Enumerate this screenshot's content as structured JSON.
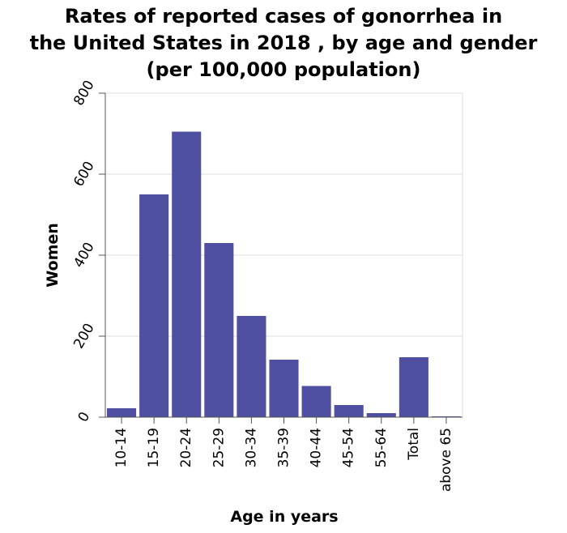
{
  "title_lines": [
    "Rates of reported cases of gonorrhea in",
    "the United States in 2018 , by age and gender",
    "(per 100,000 population)"
  ],
  "colors": {
    "bar": "#5050a2",
    "grid": "#dddddd",
    "axis": "#555555"
  },
  "chart_data": {
    "type": "bar",
    "title": "Rates of reported cases of gonorrhea in the United States in 2018 , by age and gender (per 100,000 population)",
    "xlabel": "Age in years",
    "ylabel": "Women",
    "categories": [
      "10-14",
      "15-19",
      "20-24",
      "25-29",
      "30-34",
      "35-39",
      "40-44",
      "45-54",
      "55-64",
      "Total",
      "above 65"
    ],
    "values": [
      22,
      550,
      705,
      430,
      250,
      142,
      77,
      30,
      10,
      148,
      2
    ],
    "ylim": [
      0,
      800
    ],
    "yticks": [
      0,
      200,
      400,
      600,
      800
    ],
    "grid": true,
    "legend": "none"
  }
}
